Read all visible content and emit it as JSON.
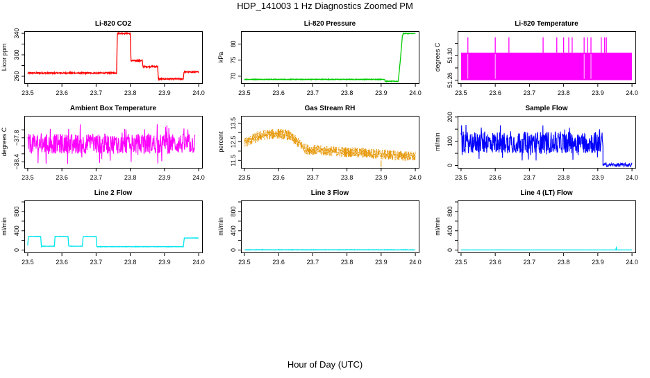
{
  "figure": {
    "title": "HDP_141003  1 Hz Diagnostics Zoomed PM",
    "xlabel": "Hour of Day (UTC)"
  },
  "chart_data": [
    {
      "type": "line",
      "title": "Li-820 CO2",
      "ylabel": "Licor ppm",
      "color": "#ff0000",
      "xlim": [
        23.49,
        24.01
      ],
      "ylim": [
        247,
        344
      ],
      "xticks": [
        23.5,
        23.6,
        23.7,
        23.8,
        23.9,
        24.0
      ],
      "xtick_labels": [
        "23.5",
        "23.6",
        "23.7",
        "23.8",
        "23.9",
        "24.0"
      ],
      "yticks": [
        260,
        280,
        300,
        320,
        340
      ],
      "ytick_labels": [
        "260",
        "",
        "300",
        "",
        "340"
      ],
      "noise": 1.2,
      "points": [
        [
          23.5,
          266
        ],
        [
          23.76,
          266
        ],
        [
          23.762,
          340
        ],
        [
          23.8,
          340
        ],
        [
          23.802,
          289
        ],
        [
          23.835,
          289
        ],
        [
          23.837,
          278
        ],
        [
          23.88,
          278
        ],
        [
          23.882,
          255
        ],
        [
          23.955,
          255
        ],
        [
          23.957,
          268
        ],
        [
          24.0,
          268
        ]
      ]
    },
    {
      "type": "line",
      "title": "Li-820 Pressure",
      "ylabel": "kPa",
      "color": "#00cc00",
      "xlim": [
        23.49,
        24.01
      ],
      "ylim": [
        67.8,
        84.0
      ],
      "xticks": [
        23.5,
        23.6,
        23.7,
        23.8,
        23.9,
        24.0
      ],
      "xtick_labels": [
        "23.5",
        "23.6",
        "23.7",
        "23.8",
        "23.9",
        "24.0"
      ],
      "yticks": [
        70,
        75,
        80
      ],
      "ytick_labels": [
        "70",
        "75",
        "80"
      ],
      "noise": 0.1,
      "points": [
        [
          23.5,
          69.0
        ],
        [
          23.91,
          69.0
        ],
        [
          23.912,
          68.4
        ],
        [
          23.95,
          68.4
        ],
        [
          23.957,
          76
        ],
        [
          23.962,
          82.5
        ],
        [
          23.965,
          83.3
        ],
        [
          24.0,
          83.3
        ]
      ]
    },
    {
      "type": "band",
      "title": "Li-820 Temperature",
      "ylabel": "degrees C",
      "color": "#ff00ff",
      "xlim": [
        23.49,
        24.01
      ],
      "ylim": [
        51.255,
        51.34
      ],
      "xticks": [
        23.5,
        23.6,
        23.7,
        23.8,
        23.9,
        24.0
      ],
      "xtick_labels": [
        "23.5",
        "23.6",
        "23.7",
        "23.8",
        "23.9",
        "24.0"
      ],
      "yticks": [
        51.26,
        51.28,
        51.3,
        51.32
      ],
      "ytick_labels": [
        "51.26",
        "",
        "51.30",
        ""
      ],
      "band": [
        51.26,
        51.305
      ],
      "spike_value": 51.33,
      "spikes_x": [
        23.52,
        23.6,
        23.64,
        23.74,
        23.78,
        23.8,
        23.815,
        23.825,
        23.86,
        23.87,
        23.88,
        23.91,
        23.92,
        23.925
      ],
      "dips_x": [
        23.52,
        23.6,
        23.86,
        23.88
      ]
    },
    {
      "type": "noise",
      "title": "Ambient Box Temperature",
      "ylabel": "degrees C",
      "color": "#ff00ff",
      "xlim": [
        23.49,
        24.01
      ],
      "ylim": [
        -38.55,
        -37.25
      ],
      "xticks": [
        23.5,
        23.6,
        23.7,
        23.8,
        23.9,
        24.0
      ],
      "xtick_labels": [
        "23.5",
        "23.6",
        "23.7",
        "23.8",
        "23.9",
        "24.0"
      ],
      "yticks": [
        -38.4,
        -38.2,
        -38.0,
        -37.8,
        -37.6
      ],
      "ytick_labels": [
        "−38.4",
        "",
        "",
        "−37.8",
        ""
      ],
      "xrange": [
        23.5,
        23.99
      ],
      "center": -37.95,
      "amp": 0.25,
      "spike_amp": 0.5
    },
    {
      "type": "dots",
      "title": "Gas Stream RH",
      "ylabel": "percent",
      "color": "#e69500",
      "xlim": [
        23.49,
        24.01
      ],
      "ylim": [
        11.1,
        13.9
      ],
      "xticks": [
        23.5,
        23.6,
        23.7,
        23.8,
        23.9,
        24.0
      ],
      "xtick_labels": [
        "23.5",
        "23.6",
        "23.7",
        "23.8",
        "23.9",
        "24.0"
      ],
      "yticks": [
        11.5,
        12.0,
        12.5,
        13.0,
        13.5
      ],
      "ytick_labels": [
        "11.5",
        "",
        "12.5",
        "",
        "13.5"
      ],
      "xrange": [
        23.5,
        24.0
      ],
      "amp": 0.28,
      "trend": [
        [
          23.5,
          12.45
        ],
        [
          23.55,
          12.85
        ],
        [
          23.6,
          12.95
        ],
        [
          23.63,
          12.85
        ],
        [
          23.68,
          12.1
        ],
        [
          23.75,
          12.0
        ],
        [
          23.85,
          11.9
        ],
        [
          24.0,
          11.7
        ]
      ]
    },
    {
      "type": "noise",
      "title": "Sample Flow",
      "ylabel": "ml/min",
      "color": "#0000ff",
      "xlim": [
        23.49,
        24.01
      ],
      "ylim": [
        -10,
        205
      ],
      "xticks": [
        23.5,
        23.6,
        23.7,
        23.8,
        23.9,
        24.0
      ],
      "xtick_labels": [
        "23.5",
        "23.6",
        "23.7",
        "23.8",
        "23.9",
        "24.0"
      ],
      "yticks": [
        0,
        50,
        100,
        150,
        200
      ],
      "ytick_labels": [
        "0",
        "",
        "100",
        "",
        "200"
      ],
      "xrange": [
        23.5,
        23.915
      ],
      "center": 95,
      "amp": 45,
      "spike_amp": 75,
      "tail": {
        "from": 23.915,
        "to": 24.0,
        "value": 2,
        "amp": 8
      }
    },
    {
      "type": "line",
      "title": "Line 2 Flow",
      "ylabel": "ml/min",
      "color": "#00e5ee",
      "xlim": [
        23.49,
        24.01
      ],
      "ylim": [
        -50,
        1030
      ],
      "xticks": [
        23.5,
        23.6,
        23.7,
        23.8,
        23.9,
        24.0
      ],
      "xtick_labels": [
        "23.5",
        "23.6",
        "23.7",
        "23.8",
        "23.9",
        "24.0"
      ],
      "yticks": [
        0,
        200,
        400,
        600,
        800,
        1000
      ],
      "ytick_labels": [
        "0",
        "",
        "400",
        "",
        "800",
        ""
      ],
      "noise": 4,
      "points": [
        [
          23.5,
          100
        ],
        [
          23.502,
          280
        ],
        [
          23.538,
          280
        ],
        [
          23.54,
          80
        ],
        [
          23.578,
          80
        ],
        [
          23.58,
          280
        ],
        [
          23.618,
          280
        ],
        [
          23.62,
          80
        ],
        [
          23.66,
          80
        ],
        [
          23.662,
          280
        ],
        [
          23.7,
          280
        ],
        [
          23.702,
          70
        ],
        [
          23.955,
          70
        ],
        [
          23.958,
          250
        ],
        [
          24.0,
          250
        ]
      ]
    },
    {
      "type": "line",
      "title": "Line 3 Flow",
      "ylabel": "ml/min",
      "color": "#00e5ee",
      "xlim": [
        23.49,
        24.01
      ],
      "ylim": [
        -50,
        1030
      ],
      "xticks": [
        23.5,
        23.6,
        23.7,
        23.8,
        23.9,
        24.0
      ],
      "xtick_labels": [
        "23.5",
        "23.6",
        "23.7",
        "23.8",
        "23.9",
        "24.0"
      ],
      "yticks": [
        0,
        200,
        400,
        600,
        800,
        1000
      ],
      "ytick_labels": [
        "0",
        "",
        "400",
        "",
        "800",
        ""
      ],
      "noise": 4,
      "points": [
        [
          23.5,
          5
        ],
        [
          24.0,
          5
        ]
      ]
    },
    {
      "type": "line",
      "title": "Line 4 (LT) Flow",
      "ylabel": "ml/min",
      "color": "#00e5ee",
      "xlim": [
        23.49,
        24.01
      ],
      "ylim": [
        -50,
        1030
      ],
      "xticks": [
        23.5,
        23.6,
        23.7,
        23.8,
        23.9,
        24.0
      ],
      "xtick_labels": [
        "23.5",
        "23.6",
        "23.7",
        "23.8",
        "23.9",
        "24.0"
      ],
      "yticks": [
        0,
        200,
        400,
        600,
        800,
        1000
      ],
      "ytick_labels": [
        "0",
        "",
        "400",
        "",
        "800",
        ""
      ],
      "noise": 1,
      "points": [
        [
          23.5,
          3
        ],
        [
          23.953,
          3
        ],
        [
          23.954,
          70
        ],
        [
          23.955,
          3
        ],
        [
          24.0,
          3
        ]
      ]
    }
  ]
}
